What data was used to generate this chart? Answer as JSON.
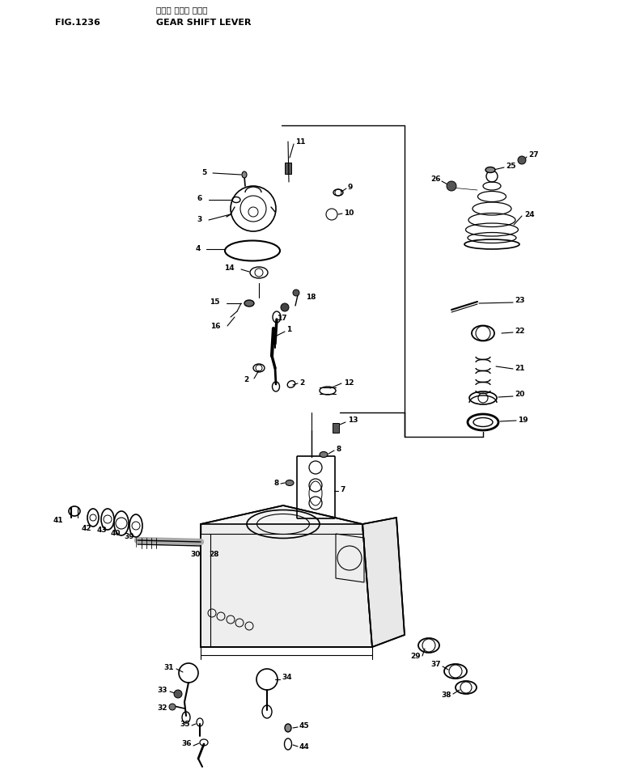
{
  "title_jp": "ギヤー シフト レバー",
  "title_en": "GEAR SHIFT LEVER",
  "fig_label": "FIG.1236",
  "bg_color": "#ffffff",
  "line_color": "#000000",
  "fig_width": 7.7,
  "fig_height": 9.57,
  "dpi": 100
}
